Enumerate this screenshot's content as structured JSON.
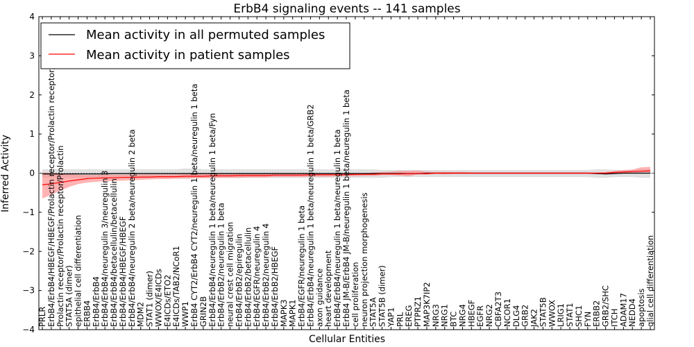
{
  "chart_data": {
    "type": "line",
    "title": "ErbB4 signaling events -- 141 samples",
    "xlabel": "Cellular Entities",
    "ylabel": "Inferred Activity",
    "ylim": [
      -4,
      4
    ],
    "yticks": [
      -4,
      -3,
      -2,
      -1,
      0,
      1,
      2,
      3,
      4
    ],
    "legend_position": "top-left",
    "colors": {
      "permuted": "#000000",
      "patient": "#ff0000",
      "permuted_band": "#d0d0d0",
      "patient_band": "#ff8080"
    },
    "categories": [
      "PRLR",
      "ErbB4/ErbB4/HBEGF/HBEGF/Prolactin receptor/Prolactin receptor/Prolactin",
      "Prolactin receptor/Prolactin receptor/Prolactin",
      "STAT5A (dimer)",
      "epithelial cell differentiation",
      "ERBB4",
      "ErbB4/ErbB4",
      "ErbB4/ErbB4/neuregulin 3/neuregulin 3",
      "ErbB4/ErbB4/betacellulin/betacellulin",
      "ErbB4/ErbB4/HBEGF/HBEGF",
      "ErbB4/ErbB4/neuregulin 2 beta/neuregulin 2 beta",
      "MDM2",
      "STAT1 (dimer)",
      "WWOX/E4ICDs",
      "E4ICDs/ETO2",
      "E4ICDs/TAB2/NCoR1",
      "WWP1",
      "ErbB4 CYT2/ErbB4 CYT2/neuregulin 1 beta/neuregulin 1 beta",
      "GRIN2B",
      "ErbB4/ErbB4/neuregulin 1 beta/neuregulin 1 beta/Fyn",
      "ErbB4/ErbB2/neuregulin 1 beta",
      "neural crest cell migration",
      "ErbB4/ErbB2/epiregulin",
      "ErbB4/ErbB2/betacellulin",
      "ErbB4/EGFR/neuregulin 4",
      "ErbB4/ErbB2/neuregulin 4",
      "ErbB4/ErbB2/HBEGF",
      "MAPK3",
      "MAPK1",
      "ErbB4/EGFR/neuregulin 1 beta",
      "ErbB4/ErbB4/neuregulin 1 beta/neuregulin 1 beta/GRB2",
      "axon guidance",
      "heart development",
      "ErbB4/ErbB4/neuregulin 1 beta/neuregulin 1 beta",
      "ErbB4 JM-B/ErbB4 JM-B/neuregulin 1 beta/neuregulin 1 beta",
      "cell proliferation",
      "neuron projection morphogenesis",
      "STAT5A",
      "STAT5B (dimer)",
      "YAP1",
      "PRL",
      "EREG",
      "PTPRZ1",
      "MAP3K7IP2",
      "NRG3",
      "NRG1",
      "BTC",
      "NRG4",
      "HBEGF",
      "EGFR",
      "NRG2",
      "CBFA2T3",
      "NCOR1",
      "DLG4",
      "GRB2",
      "JAK2",
      "STAT5B",
      "WWOX",
      "LRIG1",
      "STAT1",
      "SHC1",
      "FYN",
      "ERBB2",
      "GRB2/SHC",
      "ITCH",
      "ADAM17",
      "NEDD4",
      "apoptosis",
      "glial cell differentiation"
    ],
    "series": [
      {
        "name": "Mean activity in all permuted samples",
        "color": "#000000",
        "values": [
          -0.02,
          -0.02,
          -0.02,
          -0.02,
          -0.02,
          -0.02,
          -0.02,
          -0.02,
          -0.01,
          -0.01,
          -0.01,
          -0.01,
          -0.01,
          -0.01,
          -0.01,
          -0.01,
          -0.01,
          -0.01,
          -0.01,
          -0.01,
          -0.01,
          -0.01,
          -0.01,
          -0.01,
          -0.01,
          -0.01,
          -0.01,
          -0.01,
          -0.01,
          -0.01,
          -0.01,
          -0.01,
          -0.01,
          -0.01,
          -0.01,
          -0.01,
          -0.01,
          -0.01,
          -0.01,
          -0.01,
          -0.01,
          -0.01,
          -0.01,
          0,
          0,
          0,
          0,
          0,
          0,
          0,
          0,
          0,
          0,
          0,
          0,
          0,
          0,
          0,
          0,
          0,
          0,
          0,
          -0.01,
          -0.02,
          -0.01,
          0,
          0,
          0,
          0
        ],
        "band_lower": [
          -0.12,
          -0.12,
          -0.12,
          -0.12,
          -0.12,
          -0.12,
          -0.12,
          -0.12,
          -0.12,
          -0.12,
          -0.12,
          -0.12,
          -0.12,
          -0.12,
          -0.12,
          -0.12,
          -0.14,
          -0.14,
          -0.12,
          -0.12,
          -0.12,
          -0.12,
          -0.12,
          -0.12,
          -0.12,
          -0.12,
          -0.12,
          -0.12,
          -0.12,
          -0.12,
          -0.12,
          -0.12,
          -0.12,
          -0.12,
          -0.12,
          -0.12,
          -0.12,
          -0.12,
          -0.12,
          -0.1,
          -0.1,
          -0.1,
          -0.1,
          -0.1,
          -0.1,
          -0.1,
          -0.1,
          -0.1,
          -0.1,
          -0.1,
          -0.1,
          -0.1,
          -0.1,
          -0.1,
          -0.1,
          -0.1,
          -0.1,
          -0.1,
          -0.1,
          -0.1,
          -0.1,
          -0.1,
          -0.12,
          -0.12,
          -0.1,
          -0.1,
          -0.1,
          -0.12,
          -0.12
        ],
        "band_upper": [
          0.1,
          0.1,
          0.1,
          0.1,
          0.1,
          0.1,
          0.1,
          0.1,
          0.1,
          0.1,
          0.1,
          0.1,
          0.1,
          0.1,
          0.1,
          0.1,
          0.12,
          0.12,
          0.1,
          0.1,
          0.1,
          0.1,
          0.1,
          0.1,
          0.1,
          0.1,
          0.1,
          0.1,
          0.1,
          0.1,
          0.1,
          0.1,
          0.1,
          0.1,
          0.1,
          0.1,
          0.1,
          0.1,
          0.08,
          0.08,
          0.08,
          0.08,
          0.08,
          0.08,
          0.08,
          0.08,
          0.08,
          0.08,
          0.08,
          0.08,
          0.08,
          0.08,
          0.08,
          0.08,
          0.08,
          0.08,
          0.08,
          0.08,
          0.08,
          0.08,
          0.08,
          0.08,
          0.1,
          0.1,
          0.08,
          0.08,
          0.08,
          0.1,
          0.1
        ]
      },
      {
        "name": "Mean activity in patient samples",
        "color": "#ff0000",
        "values": [
          -0.3,
          -0.27,
          -0.24,
          -0.2,
          -0.17,
          -0.14,
          -0.13,
          -0.12,
          -0.12,
          -0.11,
          -0.11,
          -0.1,
          -0.1,
          -0.09,
          -0.09,
          -0.09,
          -0.08,
          -0.08,
          -0.08,
          -0.07,
          -0.07,
          -0.07,
          -0.06,
          -0.06,
          -0.06,
          -0.06,
          -0.05,
          -0.05,
          -0.05,
          -0.05,
          -0.04,
          -0.04,
          -0.04,
          -0.04,
          -0.04,
          -0.03,
          -0.03,
          -0.03,
          -0.02,
          -0.02,
          -0.02,
          -0.01,
          -0.01,
          -0.01,
          0,
          0,
          0,
          0,
          0,
          0,
          0,
          0,
          0,
          0,
          0,
          0,
          0,
          0,
          0,
          0,
          0,
          0,
          0,
          0,
          0.02,
          0.03,
          0.04,
          0.05,
          0.06
        ],
        "band_lower": [
          -0.65,
          -0.55,
          -0.45,
          -0.35,
          -0.28,
          -0.24,
          -0.22,
          -0.21,
          -0.2,
          -0.19,
          -0.18,
          -0.17,
          -0.16,
          -0.15,
          -0.15,
          -0.14,
          -0.14,
          -0.13,
          -0.13,
          -0.13,
          -0.12,
          -0.12,
          -0.12,
          -0.11,
          -0.11,
          -0.11,
          -0.1,
          -0.1,
          -0.1,
          -0.1,
          -0.09,
          -0.09,
          -0.09,
          -0.08,
          -0.08,
          -0.08,
          -0.07,
          -0.07,
          -0.05,
          -0.05,
          -0.06,
          -0.08,
          -0.03,
          -0.04,
          -0.02,
          -0.03,
          -0.02,
          -0.02,
          -0.02,
          -0.02,
          -0.02,
          -0.02,
          -0.02,
          -0.02,
          -0.02,
          -0.02,
          -0.02,
          -0.02,
          -0.02,
          -0.02,
          -0.02,
          -0.02,
          -0.02,
          -0.02,
          -0.01,
          0,
          0.01,
          0.02,
          0.02
        ],
        "band_upper": [
          0.02,
          0.01,
          0,
          -0.02,
          -0.04,
          -0.05,
          -0.05,
          -0.04,
          -0.04,
          -0.04,
          -0.04,
          -0.03,
          -0.03,
          -0.03,
          -0.03,
          -0.03,
          -0.02,
          -0.02,
          -0.02,
          -0.02,
          -0.02,
          -0.02,
          -0.01,
          -0.01,
          -0.01,
          -0.01,
          -0.01,
          0,
          0,
          0,
          0,
          0,
          0,
          0,
          0,
          0,
          0,
          0.02,
          0.03,
          0.04,
          0.06,
          0.06,
          0.07,
          0.04,
          0.03,
          0.03,
          0.03,
          0.03,
          0.02,
          0.02,
          0.02,
          0.02,
          0.02,
          0.02,
          0.02,
          0.02,
          0.02,
          0.02,
          0.02,
          0.02,
          0.02,
          0.02,
          0.02,
          0.03,
          0.06,
          0.08,
          0.09,
          0.15,
          0.16
        ]
      }
    ]
  }
}
